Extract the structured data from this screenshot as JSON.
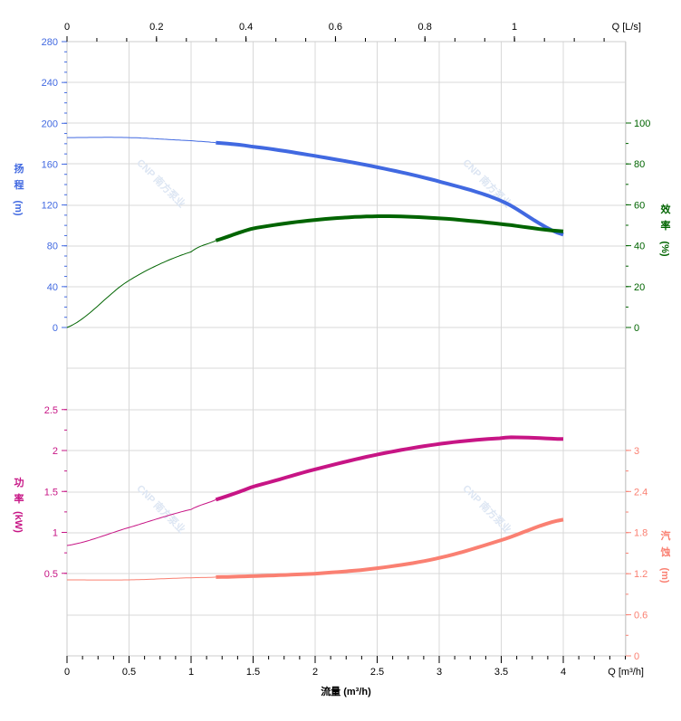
{
  "chart_data": [
    {
      "type": "line",
      "panel": "top",
      "x_axis": {
        "label": "Q [m³/h]",
        "range": [
          0,
          4.5
        ],
        "ticks": [
          0,
          0.5,
          1,
          1.5,
          2,
          2.5,
          3,
          3.5,
          4
        ]
      },
      "x2_axis": {
        "label": "Q [L/s]",
        "range": [
          0,
          1.25
        ],
        "ticks": [
          0,
          0.2,
          0.4,
          0.6,
          0.8,
          1
        ]
      },
      "y_left": {
        "label_chars": [
          "扬",
          "程",
          "(m)"
        ],
        "range": [
          0,
          280
        ],
        "ticks": [
          0,
          40,
          80,
          120,
          160,
          200,
          240,
          280
        ],
        "color": "#4169e1"
      },
      "y_right": {
        "label_chars": [
          "效",
          "率",
          "(%)"
        ],
        "range": [
          0,
          100
        ],
        "ticks": [
          0,
          20,
          40,
          60,
          80,
          100
        ],
        "color": "#006400"
      },
      "grid": true,
      "operating_range_start": 1.2,
      "series": [
        {
          "axis": "left",
          "color": "#4169e1",
          "x": [
            0,
            0.5,
            1,
            1.2,
            1.5,
            2,
            2.5,
            3,
            3.5,
            4
          ],
          "y": [
            186,
            186,
            183,
            181,
            177,
            168,
            157,
            143,
            124,
            91
          ]
        },
        {
          "axis": "right",
          "color": "#006400",
          "x": [
            0,
            0.5,
            1,
            1.2,
            1.5,
            2,
            2.5,
            3,
            3.5,
            4
          ],
          "y": [
            0,
            23,
            37,
            42.5,
            48.5,
            52.6,
            54.4,
            53.4,
            50.6,
            47
          ]
        }
      ]
    },
    {
      "type": "line",
      "panel": "bottom",
      "x_axis": {
        "label": "Q [m³/h]",
        "title": "流量 (m³/h)",
        "range": [
          0,
          4.5
        ],
        "ticks": [
          0,
          0.5,
          1,
          1.5,
          2,
          2.5,
          3,
          3.5,
          4
        ]
      },
      "y_left": {
        "label_chars": [
          "功",
          "率",
          "(kW)"
        ],
        "range": [
          -0.5,
          3
        ],
        "ticks": [
          0.5,
          1,
          1.5,
          2,
          2.5
        ],
        "color": "#c71585"
      },
      "y_right": {
        "label_chars": [
          "汽",
          "蚀",
          "(m)"
        ],
        "range": [
          0,
          4.2
        ],
        "ticks": [
          0,
          0.6,
          1.2,
          1.8,
          2.4,
          3
        ],
        "color": "#fa8072"
      },
      "grid": true,
      "operating_range_start": 1.2,
      "series": [
        {
          "axis": "left",
          "color": "#c71585",
          "x": [
            0,
            0.5,
            1,
            1.2,
            1.5,
            2,
            2.5,
            3,
            3.5,
            3.65,
            4
          ],
          "y": [
            0.84,
            1.06,
            1.28,
            1.4,
            1.56,
            1.77,
            1.95,
            2.08,
            2.15,
            2.16,
            2.14
          ]
        },
        {
          "axis": "right",
          "color": "#fa8072",
          "x": [
            0,
            0.5,
            1,
            1.2,
            2,
            2.5,
            3,
            3.5,
            4
          ],
          "y": [
            1.11,
            1.11,
            1.14,
            1.15,
            1.2,
            1.28,
            1.43,
            1.69,
            1.99
          ]
        }
      ]
    }
  ],
  "watermark": "CNP 南方泵业"
}
